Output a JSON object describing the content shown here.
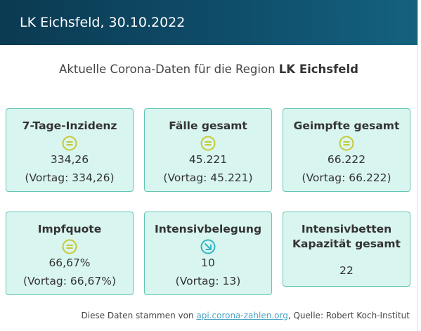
{
  "header": {
    "title": "LK Eichsfeld, 30.10.2022"
  },
  "subtitle": {
    "prefix": "Aktuelle Corona-Daten für die Region",
    "region": "LK Eichsfeld"
  },
  "cards": [
    {
      "title": "7-Tage-Inzidenz",
      "icon": "equal-icon",
      "value": "334,26",
      "previous": "(Vortag: 334,26)"
    },
    {
      "title": "Fälle gesamt",
      "icon": "equal-icon",
      "value": "45.221",
      "previous": "(Vortag: 45.221)"
    },
    {
      "title": "Geimpfte gesamt",
      "icon": "equal-icon",
      "value": "66.222",
      "previous": "(Vortag: 66.222)"
    },
    {
      "title": "Impfquote",
      "icon": "equal-icon",
      "value": "66,67%",
      "previous": "(Vortag: 66,67%)"
    },
    {
      "title": "Intensivbelegung",
      "icon": "arrow-down-right-icon",
      "value": "10",
      "previous": "(Vortag: 13)"
    },
    {
      "title_line1": "Intensivbetten",
      "title_line2": "Kapazität gesamt",
      "value": "22"
    }
  ],
  "footer": {
    "prefix": "Diese Daten stammen von",
    "link": "api.corona-zahlen.org",
    "suffix": ", Quelle: Robert Koch-Institut"
  },
  "colors": {
    "header_bg": "#0f4d6a",
    "card_bg": "#d9f5f0",
    "card_border": "#63c6b3",
    "equal_icon": "#c7c936",
    "arrow_icon": "#34b4c4",
    "link": "#4aa3c4"
  }
}
